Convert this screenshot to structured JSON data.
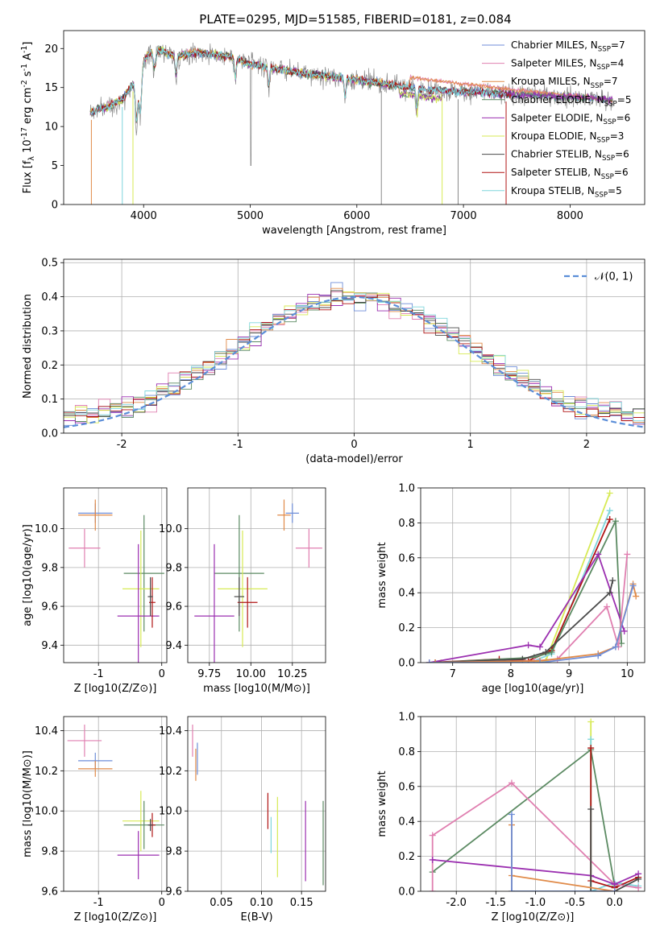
{
  "figure": {
    "title": "PLATE=0295, MJD=51585, FIBERID=0181, z=0.084"
  },
  "colors": {
    "chabrier_miles": "#6f8ed8",
    "salpeter_miles": "#e07fb0",
    "kroupa_miles": "#e08a48",
    "chabrier_elodie": "#5b8a62",
    "salpeter_elodie": "#9b2fb0",
    "kroupa_elodie": "#d7ea55",
    "chabrier_stelib": "#4a4a4a",
    "salpeter_stelib": "#b01414",
    "kroupa_stelib": "#7fd6dc",
    "data_gray": "#8a8a8a",
    "normal_curve": "#5b8ed8"
  },
  "chart_data": [
    {
      "id": "spectrum",
      "type": "line",
      "title": "PLATE=0295, MJD=51585, FIBERID=0181, z=0.084",
      "xlabel": "wavelength [Angstrom, rest frame]",
      "ylabel": "Flux [f_λ 10^-17 erg cm^-2 s^-1 A^-1]",
      "xlim": [
        3250,
        8700
      ],
      "ylim": [
        0,
        22.3
      ],
      "xticks": [
        4000,
        5000,
        6000,
        7000,
        8000
      ],
      "yticks": [
        0,
        5,
        10,
        15,
        20
      ],
      "legend_position": "top-right",
      "series": [
        {
          "name": "Chabrier MILES, N_SSP=7",
          "color_key": "chabrier_miles"
        },
        {
          "name": "Salpeter MILES, N_SSP=4",
          "color_key": "salpeter_miles"
        },
        {
          "name": "Kroupa MILES, N_SSP=7",
          "color_key": "kroupa_miles"
        },
        {
          "name": "Chabrier ELODIE, N_SSP=5",
          "color_key": "chabrier_elodie"
        },
        {
          "name": "Salpeter ELODIE, N_SSP=6",
          "color_key": "salpeter_elodie"
        },
        {
          "name": "Kroupa ELODIE, N_SSP=3",
          "color_key": "kroupa_elodie"
        },
        {
          "name": "Chabrier STELIB, N_SSP=6",
          "color_key": "chabrier_stelib"
        },
        {
          "name": "Salpeter STELIB, N_SSP=6",
          "color_key": "salpeter_stelib"
        },
        {
          "name": "Kroupa STELIB, N_SSP=5",
          "color_key": "kroupa_stelib"
        }
      ],
      "continuum": [
        [
          3500,
          11.8
        ],
        [
          3700,
          12.8
        ],
        [
          3800,
          13.5
        ],
        [
          3900,
          15.5
        ],
        [
          4000,
          18.5
        ],
        [
          4100,
          20.0
        ],
        [
          4300,
          19.0
        ],
        [
          4500,
          19.5
        ],
        [
          4800,
          19.0
        ],
        [
          5000,
          18.0
        ],
        [
          5500,
          16.8
        ],
        [
          6000,
          16.0
        ],
        [
          6500,
          15.0
        ],
        [
          6800,
          14.6
        ],
        [
          7400,
          14.2
        ],
        [
          8000,
          13.8
        ],
        [
          8400,
          13.4
        ]
      ],
      "model_continuum_red": [
        [
          6500,
          16.3
        ],
        [
          6800,
          15.8
        ],
        [
          7400,
          14.8
        ],
        [
          8000,
          14.0
        ],
        [
          8400,
          13.3
        ]
      ],
      "absorption_lines": [
        3934,
        3969,
        4102,
        4304,
        4861,
        5175,
        5890,
        6563
      ]
    },
    {
      "id": "residuals",
      "type": "histogram",
      "xlabel": "(data-model)/error",
      "ylabel": "Normed distribution",
      "xlim": [
        -2.5,
        2.5
      ],
      "ylim": [
        0,
        0.51
      ],
      "xticks": [
        -2,
        -1,
        0,
        1,
        2
      ],
      "yticks": [
        0.0,
        0.1,
        0.2,
        0.3,
        0.4,
        0.5
      ],
      "legend": "𝒩(0, 1)",
      "legend_position": "top-right",
      "bin_edges_start": -2.5,
      "bin_width": 0.1,
      "hist_colors": [
        "chabrier_miles",
        "salpeter_miles",
        "kroupa_miles",
        "chabrier_elodie",
        "salpeter_elodie",
        "kroupa_elodie",
        "chabrier_stelib",
        "salpeter_stelib",
        "kroupa_stelib"
      ],
      "normal": {
        "mean": 0,
        "sigma": 1
      }
    },
    {
      "id": "age_vs_Z",
      "type": "scatter",
      "xlabel": "Z [log10(Z/Z⊙)]",
      "ylabel": "age [log10(age/yr)]",
      "xlim": [
        -1.55,
        0.08
      ],
      "ylim": [
        9.31,
        10.21
      ],
      "xticks": [
        -1,
        0
      ],
      "yticks": [
        9.4,
        9.6,
        9.8,
        10.0
      ],
      "points": [
        {
          "color_key": "chabrier_miles",
          "x": -1.05,
          "y": 10.08,
          "xerr": 0.27,
          "yerr": 0.05
        },
        {
          "color_key": "kroupa_miles",
          "x": -1.05,
          "y": 10.07,
          "xerr": 0.27,
          "yerr": 0.08
        },
        {
          "color_key": "salpeter_miles",
          "x": -1.22,
          "y": 9.9,
          "xerr": 0.25,
          "yerr": 0.1
        },
        {
          "color_key": "chabrier_elodie",
          "x": -0.28,
          "y": 9.77,
          "xerr": 0.32,
          "yerr": 0.3
        },
        {
          "color_key": "kroupa_elodie",
          "x": -0.33,
          "y": 9.69,
          "xerr": 0.29,
          "yerr": 0.3
        },
        {
          "color_key": "salpeter_elodie",
          "x": -0.37,
          "y": 9.55,
          "xerr": 0.33,
          "yerr": 0.37
        },
        {
          "color_key": "salpeter_stelib",
          "x": -0.15,
          "y": 9.62,
          "xerr": 0.05,
          "yerr": 0.13
        },
        {
          "color_key": "chabrier_stelib",
          "x": -0.18,
          "y": 9.65,
          "xerr": 0.04,
          "yerr": 0.1
        }
      ]
    },
    {
      "id": "age_vs_mass",
      "type": "scatter",
      "xlabel": "mass [log10(M/M⊙)]",
      "ylabel": "",
      "xlim": [
        9.62,
        10.45
      ],
      "ylim": [
        9.31,
        10.21
      ],
      "xticks": [
        9.75,
        10.0,
        10.25
      ],
      "yticks": [
        9.4,
        9.6,
        9.8,
        10.0
      ],
      "points": [
        {
          "color_key": "chabrier_miles",
          "x": 10.25,
          "y": 10.08,
          "xerr": 0.04,
          "yerr": 0.05
        },
        {
          "color_key": "kroupa_miles",
          "x": 10.2,
          "y": 10.07,
          "xerr": 0.04,
          "yerr": 0.08
        },
        {
          "color_key": "salpeter_miles",
          "x": 10.35,
          "y": 9.9,
          "xerr": 0.08,
          "yerr": 0.1
        },
        {
          "color_key": "chabrier_elodie",
          "x": 9.93,
          "y": 9.77,
          "xerr": 0.15,
          "yerr": 0.3
        },
        {
          "color_key": "kroupa_elodie",
          "x": 9.95,
          "y": 9.69,
          "xerr": 0.15,
          "yerr": 0.3
        },
        {
          "color_key": "salpeter_elodie",
          "x": 9.78,
          "y": 9.55,
          "xerr": 0.12,
          "yerr": 0.37
        },
        {
          "color_key": "salpeter_stelib",
          "x": 9.98,
          "y": 9.62,
          "xerr": 0.06,
          "yerr": 0.13
        },
        {
          "color_key": "chabrier_stelib",
          "x": 9.93,
          "y": 9.65,
          "xerr": 0.03,
          "yerr": 0.1
        }
      ]
    },
    {
      "id": "weight_vs_age",
      "type": "line",
      "xlabel": "age [log10(age/yr)]",
      "ylabel": "mass weight",
      "xlim": [
        6.45,
        10.3
      ],
      "ylim": [
        0,
        1.0
      ],
      "xticks": [
        7,
        8,
        9,
        10
      ],
      "yticks": [
        0.0,
        0.2,
        0.4,
        0.6,
        0.8,
        1.0
      ],
      "series": [
        {
          "color_key": "kroupa_elodie",
          "points": [
            [
              6.8,
              0.0
            ],
            [
              8.6,
              0.01
            ],
            [
              9.7,
              0.97
            ]
          ]
        },
        {
          "color_key": "kroupa_stelib",
          "points": [
            [
              6.6,
              0.0
            ],
            [
              8.4,
              0.01
            ],
            [
              8.7,
              0.05
            ],
            [
              9.7,
              0.87
            ]
          ]
        },
        {
          "color_key": "salpeter_stelib",
          "points": [
            [
              6.6,
              0.0
            ],
            [
              7.8,
              0.02
            ],
            [
              8.3,
              0.01
            ],
            [
              8.7,
              0.07
            ],
            [
              9.7,
              0.82
            ]
          ]
        },
        {
          "color_key": "chabrier_elodie",
          "points": [
            [
              6.7,
              0.0
            ],
            [
              8.4,
              0.03
            ],
            [
              8.7,
              0.06
            ],
            [
              9.8,
              0.81
            ],
            [
              9.9,
              0.11
            ]
          ]
        },
        {
          "color_key": "salpeter_elodie",
          "points": [
            [
              6.6,
              0.0
            ],
            [
              8.3,
              0.1
            ],
            [
              8.5,
              0.09
            ],
            [
              9.5,
              0.62
            ],
            [
              9.95,
              0.18
            ]
          ]
        },
        {
          "color_key": "chabrier_stelib",
          "points": [
            [
              6.7,
              0.0
            ],
            [
              8.2,
              0.02
            ],
            [
              8.6,
              0.06
            ],
            [
              9.7,
              0.4
            ],
            [
              9.75,
              0.47
            ]
          ]
        },
        {
          "color_key": "salpeter_miles",
          "points": [
            [
              6.7,
              0.0
            ],
            [
              8.4,
              0.01
            ],
            [
              8.8,
              0.02
            ],
            [
              9.65,
              0.32
            ],
            [
              9.85,
              0.09
            ],
            [
              10.0,
              0.62
            ]
          ]
        },
        {
          "color_key": "kroupa_miles",
          "points": [
            [
              6.7,
              0.0
            ],
            [
              8.5,
              0.01
            ],
            [
              9.5,
              0.05
            ],
            [
              9.8,
              0.09
            ],
            [
              10.1,
              0.45
            ],
            [
              10.15,
              0.38
            ]
          ]
        },
        {
          "color_key": "chabrier_miles",
          "points": [
            [
              6.6,
              0.0
            ],
            [
              8.5,
              0.0
            ],
            [
              9.5,
              0.04
            ],
            [
              9.8,
              0.09
            ],
            [
              10.1,
              0.44
            ]
          ]
        }
      ]
    },
    {
      "id": "mass_vs_Z",
      "type": "scatter",
      "xlabel": "Z [log10(Z/Z⊙)]",
      "ylabel": "mass [log10(M/M⊙)]",
      "xlim": [
        -1.55,
        0.08
      ],
      "ylim": [
        9.6,
        10.47
      ],
      "xticks": [
        -1,
        0
      ],
      "yticks": [
        9.6,
        9.8,
        10.0,
        10.2,
        10.4
      ],
      "points": [
        {
          "color_key": "salpeter_miles",
          "x": -1.22,
          "y": 10.35,
          "xerr": 0.27,
          "yerr": 0.08
        },
        {
          "color_key": "chabrier_miles",
          "x": -1.05,
          "y": 10.25,
          "xerr": 0.27,
          "yerr": 0.04
        },
        {
          "color_key": "kroupa_miles",
          "x": -1.05,
          "y": 10.21,
          "xerr": 0.27,
          "yerr": 0.04
        },
        {
          "color_key": "kroupa_elodie",
          "x": -0.33,
          "y": 9.95,
          "xerr": 0.29,
          "yerr": 0.15
        },
        {
          "color_key": "chabrier_elodie",
          "x": -0.28,
          "y": 9.93,
          "xerr": 0.32,
          "yerr": 0.12
        },
        {
          "color_key": "salpeter_elodie",
          "x": -0.37,
          "y": 9.78,
          "xerr": 0.33,
          "yerr": 0.12
        },
        {
          "color_key": "salpeter_stelib",
          "x": -0.15,
          "y": 9.93,
          "xerr": 0.05,
          "yerr": 0.06
        },
        {
          "color_key": "chabrier_stelib",
          "x": -0.18,
          "y": 9.93,
          "xerr": 0.04,
          "yerr": 0.03
        }
      ]
    },
    {
      "id": "mass_vs_ebv",
      "type": "scatter",
      "xlabel": "E(B-V)",
      "ylabel": "",
      "xlim": [
        0.008,
        0.18
      ],
      "ylim": [
        9.6,
        10.47
      ],
      "xticks": [
        0.05,
        0.1,
        0.15
      ],
      "yticks": [
        9.6,
        9.8,
        10.0,
        10.2,
        10.4
      ],
      "points": [
        {
          "color_key": "salpeter_miles",
          "x": 0.014,
          "y": 10.35,
          "yerr": 0.08
        },
        {
          "color_key": "chabrier_miles",
          "x": 0.02,
          "y": 10.26,
          "yerr": 0.08
        },
        {
          "color_key": "kroupa_miles",
          "x": 0.018,
          "y": 10.23,
          "yerr": 0.08
        },
        {
          "color_key": "salpeter_stelib",
          "x": 0.108,
          "y": 10.0,
          "yerr": 0.09
        },
        {
          "color_key": "kroupa_stelib",
          "x": 0.112,
          "y": 9.88,
          "yerr": 0.09
        },
        {
          "color_key": "kroupa_elodie",
          "x": 0.12,
          "y": 9.87,
          "yerr": 0.2
        },
        {
          "color_key": "salpeter_elodie",
          "x": 0.155,
          "y": 9.85,
          "yerr": 0.2
        },
        {
          "color_key": "chabrier_elodie",
          "x": 0.177,
          "y": 9.84,
          "yerr": 0.21
        }
      ]
    },
    {
      "id": "weight_vs_Z",
      "type": "line",
      "xlabel": "Z [log10(Z/Z⊙)]",
      "ylabel": "mass weight",
      "xlim": [
        -2.45,
        0.38
      ],
      "ylim": [
        0,
        1.0
      ],
      "xticks": [
        -2.0,
        -1.5,
        -1.0,
        -0.5,
        0.0
      ],
      "yticks": [
        0.0,
        0.2,
        0.4,
        0.6,
        0.8,
        1.0
      ],
      "series": [
        {
          "color_key": "kroupa_elodie",
          "points": [
            [
              -0.3,
              0.97
            ],
            [
              -0.3,
              0.0
            ],
            [
              0.0,
              0.0
            ]
          ]
        },
        {
          "color_key": "kroupa_stelib",
          "points": [
            [
              -0.3,
              0.87
            ],
            [
              -0.3,
              0.0
            ],
            [
              0.0,
              0.05
            ],
            [
              0.3,
              0.03
            ]
          ]
        },
        {
          "color_key": "chabrier_elodie",
          "points": [
            [
              -2.3,
              0.11
            ],
            [
              -0.3,
              0.81
            ],
            [
              0.0,
              0.03
            ]
          ]
        },
        {
          "color_key": "salpeter_stelib",
          "points": [
            [
              -0.3,
              0.82
            ],
            [
              -0.3,
              0.06
            ],
            [
              0.0,
              0.02
            ],
            [
              0.3,
              0.08
            ]
          ]
        },
        {
          "color_key": "salpeter_miles",
          "points": [
            [
              -2.3,
              0.0
            ],
            [
              -2.3,
              0.32
            ],
            [
              -1.3,
              0.62
            ],
            [
              0.0,
              0.04
            ],
            [
              0.3,
              0.02
            ]
          ]
        },
        {
          "color_key": "salpeter_elodie",
          "points": [
            [
              -2.3,
              0.18
            ],
            [
              -0.3,
              0.09
            ],
            [
              0.0,
              0.04
            ],
            [
              0.3,
              0.1
            ]
          ]
        },
        {
          "color_key": "chabrier_stelib",
          "points": [
            [
              -0.3,
              0.47
            ],
            [
              -0.3,
              0.0
            ],
            [
              0.0,
              0.0
            ],
            [
              0.3,
              0.07
            ]
          ]
        },
        {
          "color_key": "kroupa_miles",
          "points": [
            [
              -1.3,
              0.38
            ],
            [
              -1.3,
              0.0
            ],
            [
              -1.3,
              0.09
            ],
            [
              0.0,
              0.0
            ]
          ]
        },
        {
          "color_key": "chabrier_miles",
          "points": [
            [
              -1.3,
              0.44
            ],
            [
              -1.3,
              0.0
            ],
            [
              0.0,
              0.0
            ]
          ]
        }
      ]
    }
  ]
}
